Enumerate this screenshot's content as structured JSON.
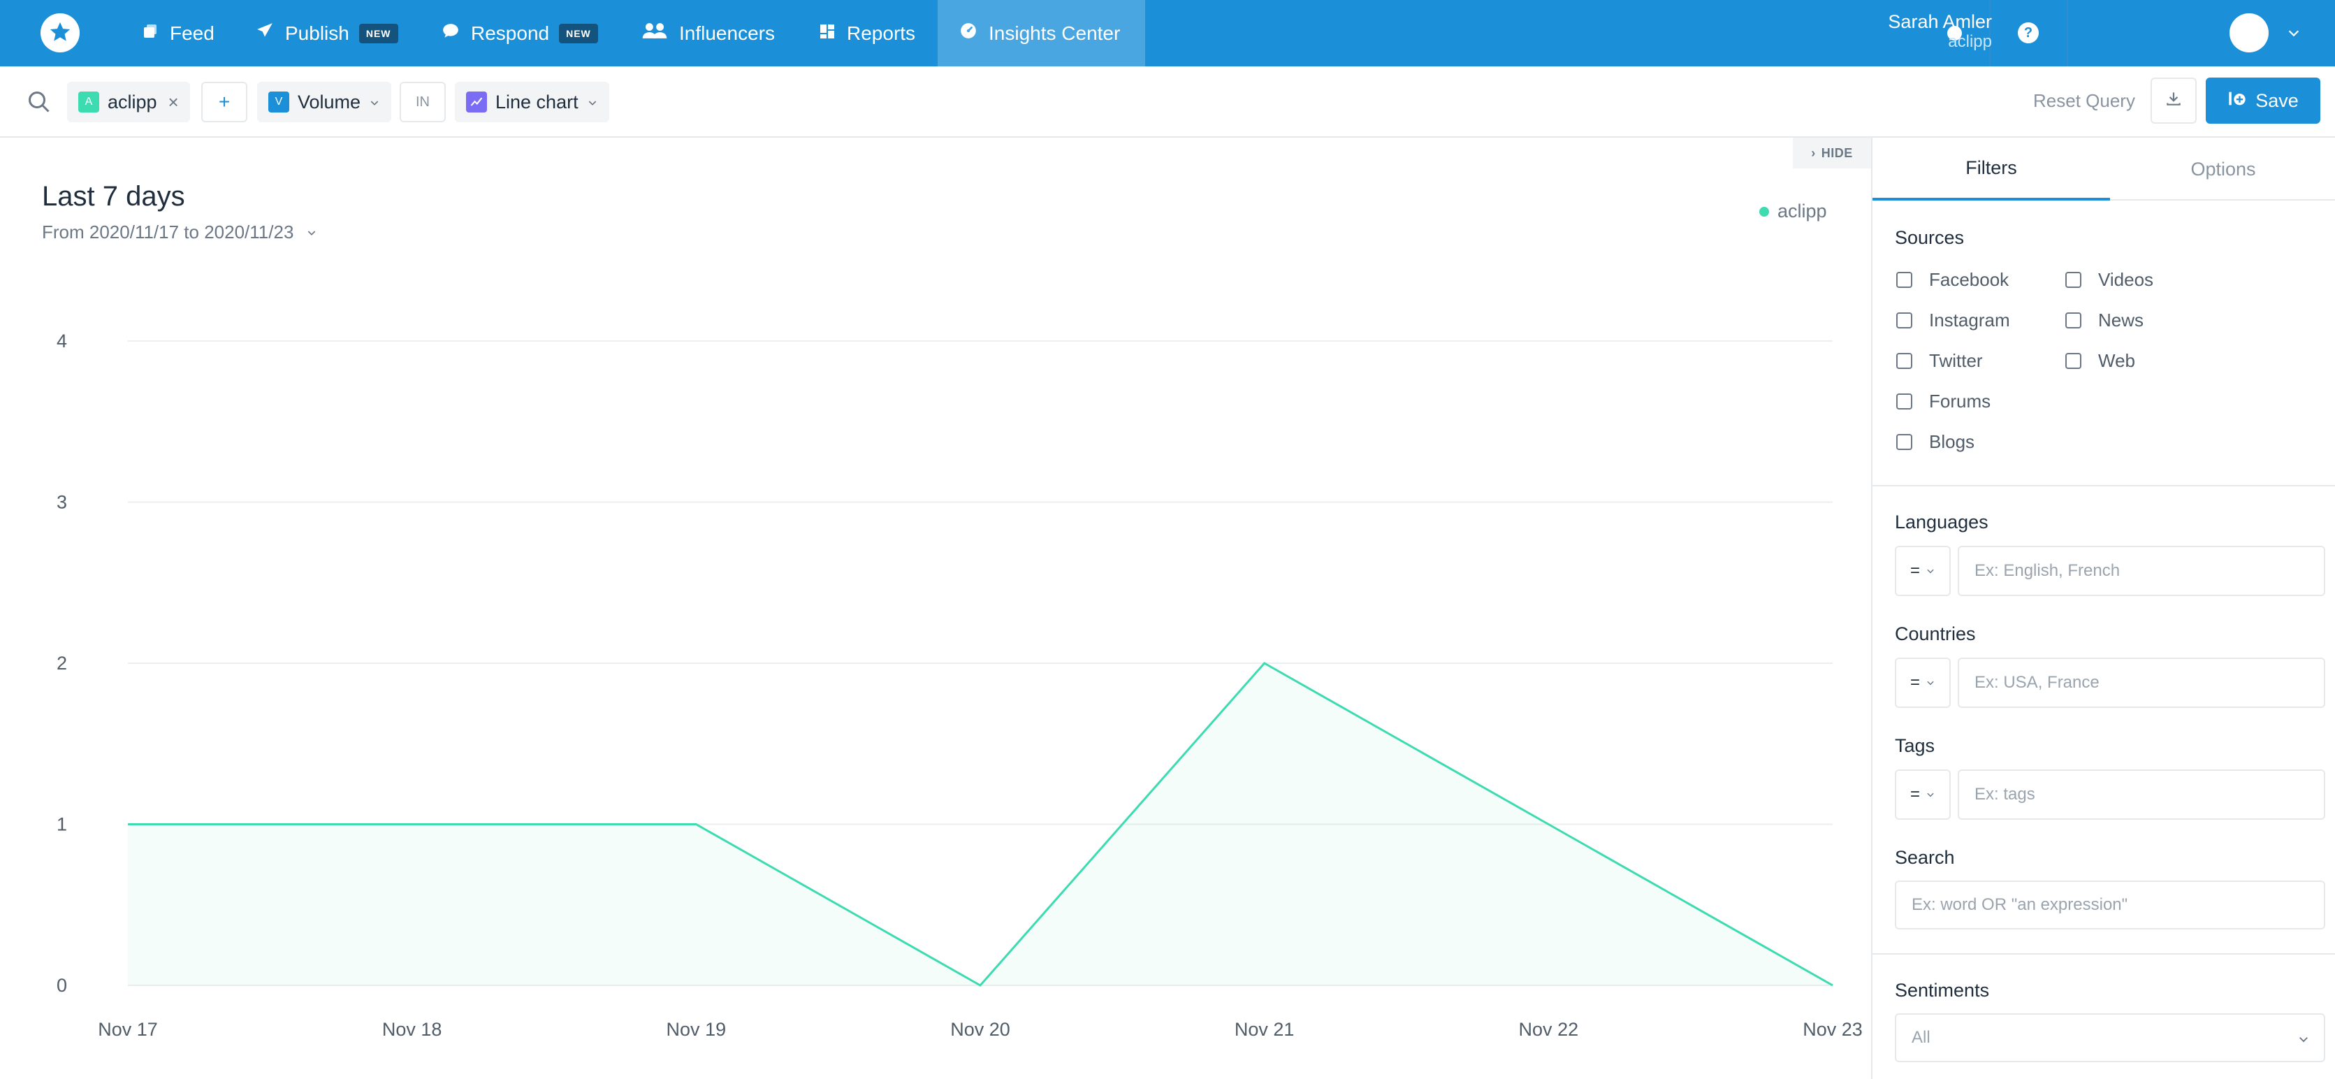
{
  "nav": {
    "items": [
      {
        "label": "Feed",
        "icon": "feed-icon"
      },
      {
        "label": "Publish",
        "icon": "paper-plane-icon",
        "badge": "NEW"
      },
      {
        "label": "Respond",
        "icon": "chat-bubble-icon",
        "badge": "NEW"
      },
      {
        "label": "Influencers",
        "icon": "people-icon"
      },
      {
        "label": "Reports",
        "icon": "dashboard-icon"
      },
      {
        "label": "Insights Center",
        "icon": "gauge-icon",
        "active": true
      }
    ],
    "help_label": "?",
    "user": {
      "name": "Sarah Amler",
      "org": "aclipp"
    },
    "colors": {
      "bar": "#1b8fd8",
      "active": "#4aa6e1"
    }
  },
  "query": {
    "topic_chip": {
      "letter": "A",
      "label": "aclipp",
      "color": "#3ddbb0"
    },
    "add_label": "+",
    "metric_chip": {
      "letter": "V",
      "label": "Volume",
      "color": "#1b8fd8"
    },
    "in_label": "IN",
    "viz_chip": {
      "label": "Line chart",
      "color": "#7b6cf6"
    },
    "reset_label": "Reset Query",
    "save_label": "Save"
  },
  "main": {
    "hide_label": "HIDE",
    "title": "Last 7 days",
    "date_range": "From 2020/11/17 to 2020/11/23",
    "legend": "aclipp"
  },
  "chart_data": {
    "type": "area",
    "categories": [
      "Nov 17",
      "Nov 18",
      "Nov 19",
      "Nov 20",
      "Nov 21",
      "Nov 22",
      "Nov 23"
    ],
    "series": [
      {
        "name": "aclipp",
        "values": [
          1,
          1,
          1,
          0,
          2,
          1,
          0
        ],
        "color": "#3ddbb0"
      }
    ],
    "yticks": [
      0,
      1,
      2,
      3,
      4
    ],
    "ylim": [
      0,
      4
    ],
    "title": "Last 7 days",
    "xlabel": "",
    "ylabel": "",
    "grid": true,
    "legend_position": "top-right"
  },
  "panel": {
    "tabs": [
      {
        "label": "Filters",
        "active": true
      },
      {
        "label": "Options",
        "active": false
      }
    ],
    "sources": {
      "label": "Sources",
      "col1": [
        "Facebook",
        "Instagram",
        "Twitter",
        "Forums",
        "Blogs"
      ],
      "col2": [
        "Videos",
        "News",
        "Web"
      ]
    },
    "languages": {
      "label": "Languages",
      "operator": "=",
      "placeholder": "Ex: English, French"
    },
    "countries": {
      "label": "Countries",
      "operator": "=",
      "placeholder": "Ex: USA, France"
    },
    "tags": {
      "label": "Tags",
      "operator": "=",
      "placeholder": "Ex: tags"
    },
    "search": {
      "label": "Search",
      "placeholder": "Ex: word OR \"an expression\""
    },
    "sentiments": {
      "label": "Sentiments",
      "value": "All"
    }
  }
}
